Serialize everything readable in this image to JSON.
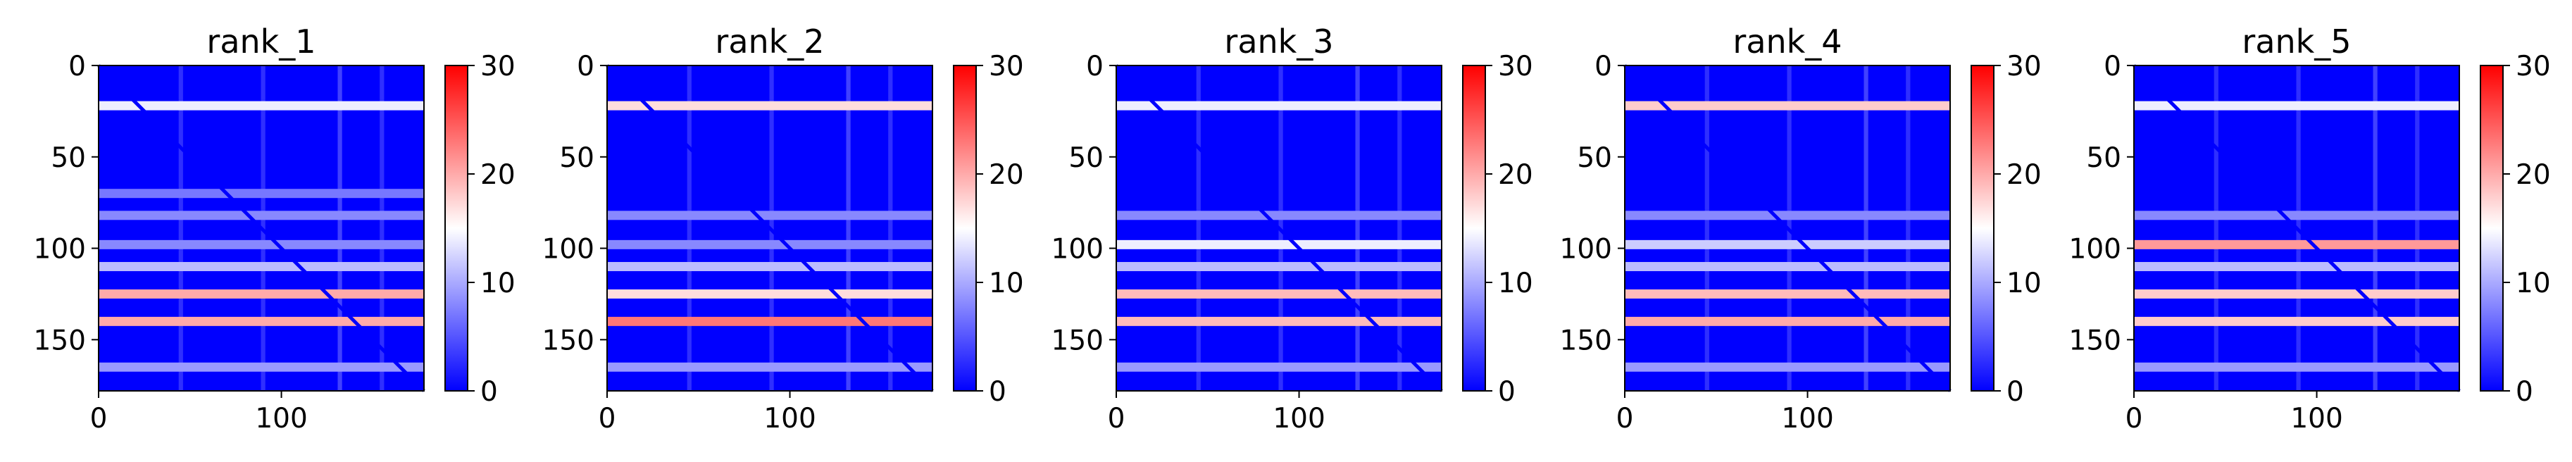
{
  "chart_data": [
    {
      "type": "heatmap",
      "title": "rank_1",
      "xlabel": "",
      "ylabel": "",
      "xlim": [
        0,
        178
      ],
      "ylim": [
        178,
        0
      ],
      "x_ticks": [
        0,
        100
      ],
      "y_ticks": [
        0,
        50,
        100,
        150
      ],
      "grid": false,
      "colormap": [
        "#0000ff",
        "#ffffff",
        "#ff0000"
      ],
      "colorbar": {
        "range": [
          0,
          30
        ],
        "ticks": [
          0,
          10,
          20,
          30
        ]
      },
      "diagonal": {
        "value": 0
      },
      "bright_rows": [
        {
          "row": 22,
          "value": 14
        },
        {
          "row": 70,
          "value": 7
        },
        {
          "row": 82,
          "value": 8
        },
        {
          "row": 98,
          "value": 8
        },
        {
          "row": 110,
          "value": 11
        },
        {
          "row": 125,
          "value": 20
        },
        {
          "row": 140,
          "value": 20
        },
        {
          "row": 165,
          "value": 9
        }
      ],
      "bright_columns": [
        {
          "col": 45,
          "value": 5
        },
        {
          "col": 90,
          "value": 5
        },
        {
          "col": 132,
          "value": 7
        },
        {
          "col": 155,
          "value": 5
        }
      ]
    },
    {
      "type": "heatmap",
      "title": "rank_2",
      "xlabel": "",
      "ylabel": "",
      "xlim": [
        0,
        178
      ],
      "ylim": [
        178,
        0
      ],
      "x_ticks": [
        0,
        100
      ],
      "y_ticks": [
        0,
        50,
        100,
        150
      ],
      "grid": false,
      "colormap": [
        "#0000ff",
        "#ffffff",
        "#ff0000"
      ],
      "colorbar": {
        "range": [
          0,
          30
        ],
        "ticks": [
          0,
          10,
          20,
          30
        ]
      },
      "diagonal": {
        "value": 0
      },
      "bright_rows": [
        {
          "row": 22,
          "value": 17
        },
        {
          "row": 82,
          "value": 8
        },
        {
          "row": 98,
          "value": 8
        },
        {
          "row": 110,
          "value": 11
        },
        {
          "row": 125,
          "value": 17
        },
        {
          "row": 140,
          "value": 23
        },
        {
          "row": 165,
          "value": 9
        }
      ],
      "bright_columns": [
        {
          "col": 45,
          "value": 5
        },
        {
          "col": 90,
          "value": 5
        },
        {
          "col": 132,
          "value": 7
        },
        {
          "col": 155,
          "value": 5
        }
      ]
    },
    {
      "type": "heatmap",
      "title": "rank_3",
      "xlabel": "",
      "ylabel": "",
      "xlim": [
        0,
        178
      ],
      "ylim": [
        178,
        0
      ],
      "x_ticks": [
        0,
        100
      ],
      "y_ticks": [
        0,
        50,
        100,
        150
      ],
      "grid": false,
      "colormap": [
        "#0000ff",
        "#ffffff",
        "#ff0000"
      ],
      "colorbar": {
        "range": [
          0,
          30
        ],
        "ticks": [
          0,
          10,
          20,
          30
        ]
      },
      "diagonal": {
        "value": 0
      },
      "bright_rows": [
        {
          "row": 22,
          "value": 14
        },
        {
          "row": 82,
          "value": 8
        },
        {
          "row": 98,
          "value": 14
        },
        {
          "row": 110,
          "value": 11
        },
        {
          "row": 125,
          "value": 19
        },
        {
          "row": 140,
          "value": 19
        },
        {
          "row": 165,
          "value": 9
        }
      ],
      "bright_columns": [
        {
          "col": 45,
          "value": 5
        },
        {
          "col": 90,
          "value": 5
        },
        {
          "col": 132,
          "value": 7
        },
        {
          "col": 155,
          "value": 5
        }
      ]
    },
    {
      "type": "heatmap",
      "title": "rank_4",
      "xlabel": "",
      "ylabel": "",
      "xlim": [
        0,
        178
      ],
      "ylim": [
        178,
        0
      ],
      "x_ticks": [
        0,
        100
      ],
      "y_ticks": [
        0,
        50,
        100,
        150
      ],
      "grid": false,
      "colormap": [
        "#0000ff",
        "#ffffff",
        "#ff0000"
      ],
      "colorbar": {
        "range": [
          0,
          30
        ],
        "ticks": [
          0,
          10,
          20,
          30
        ]
      },
      "diagonal": {
        "value": 0
      },
      "bright_rows": [
        {
          "row": 22,
          "value": 18
        },
        {
          "row": 82,
          "value": 8
        },
        {
          "row": 98,
          "value": 12
        },
        {
          "row": 110,
          "value": 11
        },
        {
          "row": 125,
          "value": 19
        },
        {
          "row": 140,
          "value": 20
        },
        {
          "row": 165,
          "value": 9
        }
      ],
      "bright_columns": [
        {
          "col": 45,
          "value": 5
        },
        {
          "col": 90,
          "value": 5
        },
        {
          "col": 132,
          "value": 7
        },
        {
          "col": 155,
          "value": 5
        }
      ]
    },
    {
      "type": "heatmap",
      "title": "rank_5",
      "xlabel": "",
      "ylabel": "",
      "xlim": [
        0,
        178
      ],
      "ylim": [
        178,
        0
      ],
      "x_ticks": [
        0,
        100
      ],
      "y_ticks": [
        0,
        50,
        100,
        150
      ],
      "grid": false,
      "colormap": [
        "#0000ff",
        "#ffffff",
        "#ff0000"
      ],
      "colorbar": {
        "range": [
          0,
          30
        ],
        "ticks": [
          0,
          10,
          20,
          30
        ]
      },
      "diagonal": {
        "value": 0
      },
      "bright_rows": [
        {
          "row": 22,
          "value": 14
        },
        {
          "row": 82,
          "value": 8
        },
        {
          "row": 98,
          "value": 21
        },
        {
          "row": 110,
          "value": 11
        },
        {
          "row": 125,
          "value": 18
        },
        {
          "row": 140,
          "value": 18
        },
        {
          "row": 165,
          "value": 9
        }
      ],
      "bright_columns": [
        {
          "col": 45,
          "value": 5
        },
        {
          "col": 90,
          "value": 5
        },
        {
          "col": 132,
          "value": 7
        },
        {
          "col": 155,
          "value": 5
        }
      ]
    }
  ]
}
